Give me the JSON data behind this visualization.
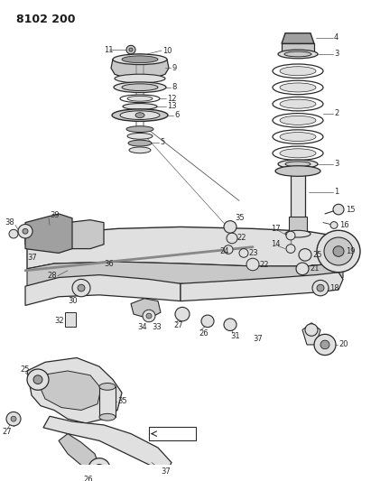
{
  "title": "8102 200",
  "bg": "#ffffff",
  "lc": "#2a2a2a",
  "fig_w": 4.11,
  "fig_h": 5.33,
  "dpi": 100,
  "gray1": "#c8c8c8",
  "gray2": "#a0a0a0",
  "gray3": "#e0e0e0",
  "gray4": "#888888",
  "gray5": "#b0b0b0"
}
